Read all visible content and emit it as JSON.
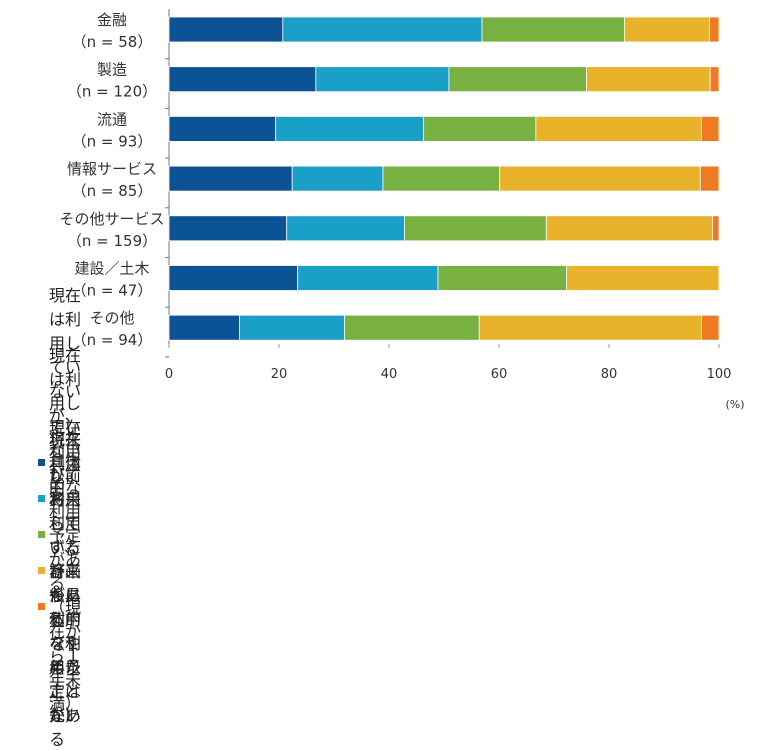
{
  "chart_data": {
    "type": "bar",
    "orientation": "horizontal",
    "stacked": true,
    "categories": [
      {
        "name": "金融",
        "n": "（n = 58）"
      },
      {
        "name": "製造",
        "n": "（n = 120）"
      },
      {
        "name": "流通",
        "n": "（n = 93）"
      },
      {
        "name": "情報サービス",
        "n": "（n = 85）"
      },
      {
        "name": "その他サービス",
        "n": "（n = 159）"
      },
      {
        "name": "建設／土木",
        "n": "（n = 47）"
      },
      {
        "name": "その他",
        "n": "（n = 94）"
      }
    ],
    "series": [
      {
        "name": "現在利用中",
        "color": "#0b5394",
        "values": [
          20.7,
          26.7,
          19.4,
          22.4,
          21.4,
          23.4,
          12.8
        ]
      },
      {
        "name": "現在は利用していないが、将来具体的な利用予定がある（現在から１年未満）",
        "color": "#1a9fc9",
        "values": [
          36.2,
          24.2,
          26.9,
          16.5,
          21.4,
          25.5,
          19.1
        ]
      },
      {
        "name": "現在は利用していないが、将来利用する計画がある（１年以上先）",
        "color": "#78b041",
        "values": [
          25.9,
          25.0,
          20.4,
          21.2,
          25.8,
          23.4,
          24.5
        ]
      },
      {
        "name": "現在利用しておらず、将来も具体的な利用予定はない",
        "color": "#e8b32a",
        "values": [
          15.5,
          22.5,
          30.1,
          36.5,
          30.2,
          27.7,
          40.4
        ]
      },
      {
        "name": "以前利用していたが、後に利用をやめたことがある",
        "color": "#ee7b22",
        "values": [
          1.7,
          1.6,
          3.2,
          3.4,
          1.2,
          0,
          3.2
        ]
      }
    ],
    "xlim": [
      0,
      100
    ],
    "xticks": [
      "0",
      "20",
      "40",
      "60",
      "80",
      "100"
    ],
    "unit": "(%)",
    "legend_position": "bottom"
  }
}
